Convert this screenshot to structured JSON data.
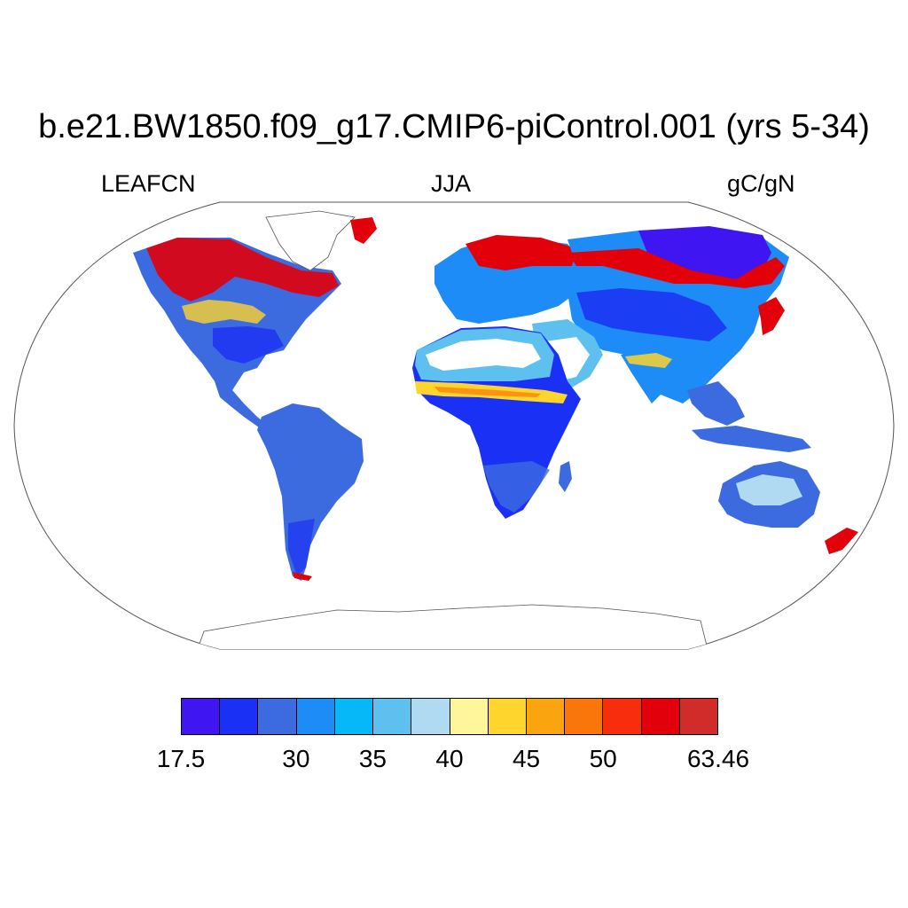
{
  "title": "b.e21.BW1850.f09_g17.CMIP6-piControl.001 (yrs 5-34)",
  "left_label": "LEAFCN",
  "center_label": "JJA",
  "right_label": "gC/gN",
  "colorbar": {
    "colors": [
      "#3f15f2",
      "#1b30f5",
      "#3c6be0",
      "#1e8cf7",
      "#06b8f7",
      "#5ec0ef",
      "#b0daf2",
      "#fff59a",
      "#fdd52c",
      "#faa50f",
      "#fa760a",
      "#f72d0d",
      "#e2000b",
      "#d12b2a"
    ],
    "labels": [
      "17.5",
      "30",
      "35",
      "40",
      "45",
      "50",
      "63.46"
    ],
    "label_boundaries": [
      0,
      3,
      5,
      7,
      9,
      11,
      14
    ]
  },
  "chart_data": {
    "type": "heatmap",
    "title": "b.e21.BW1850.f09_g17.CMIP6-piControl.001 (yrs 5-34)",
    "variable": "LEAFCN",
    "season": "JJA",
    "units": "gC/gN",
    "color_levels": [
      "17.5",
      "30",
      "35",
      "40",
      "45",
      "50",
      "63.46"
    ]
  }
}
